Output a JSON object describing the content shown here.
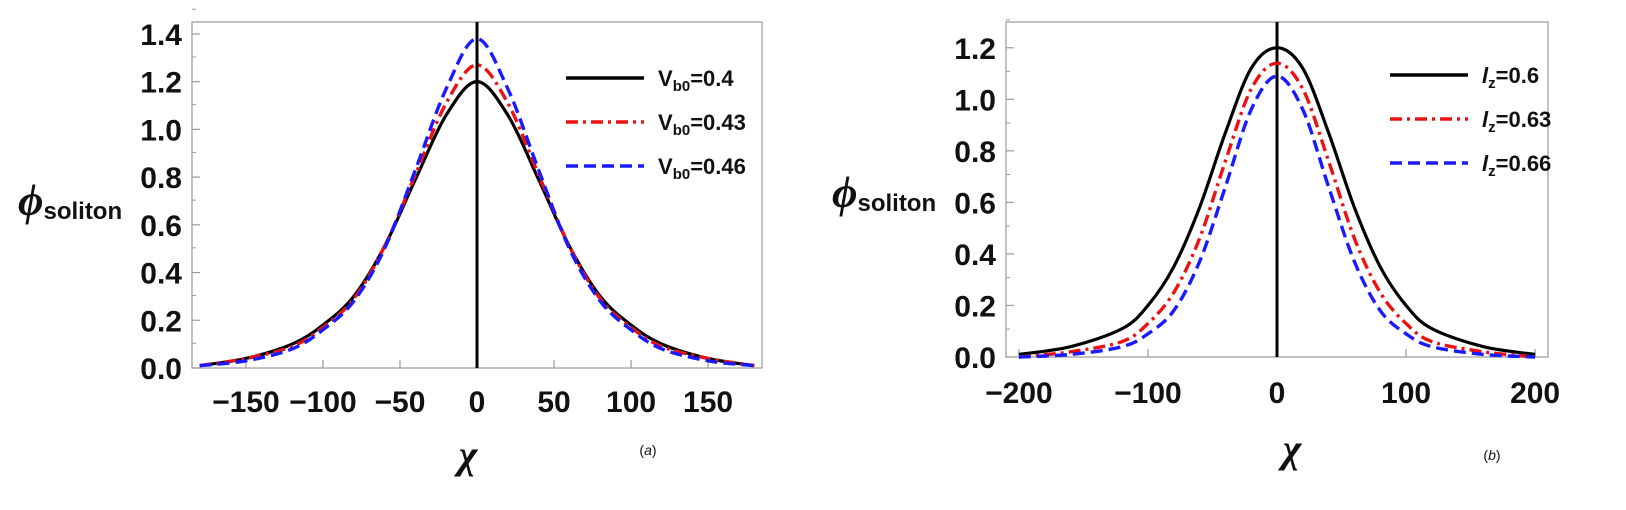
{
  "chart_data": [
    {
      "type": "line",
      "panel_label": "(a)",
      "panel_letter": "a",
      "xlabel": "χ",
      "ylabel": "ϕ",
      "ylabel_sub": "soliton",
      "xlim": [
        -185,
        185
      ],
      "ylim": [
        0,
        1.45
      ],
      "xticks": [
        -150,
        -100,
        -50,
        0,
        50,
        100,
        150
      ],
      "xtick_labels": [
        "−150",
        "−100",
        "−50",
        "0",
        "50",
        "100",
        "150"
      ],
      "yticks": [
        0,
        0.2,
        0.4,
        0.6,
        0.8,
        1.0,
        1.2,
        1.4
      ],
      "ytick_labels": [
        "0.0",
        "0.2",
        "0.4",
        "0.6",
        "0.8",
        "1.0",
        "1.2",
        "1.4"
      ],
      "legend_position": "top-right",
      "x": [
        -180,
        -150,
        -120,
        -100,
        -80,
        -60,
        -40,
        -20,
        0,
        20,
        40,
        60,
        80,
        100,
        120,
        150,
        180
      ],
      "series": [
        {
          "name": "Vb0=0.4",
          "label_main": "V",
          "label_sub": "b0",
          "label_value": "=0.4",
          "color": "#000000",
          "style": "solid",
          "values": [
            0.01,
            0.04,
            0.1,
            0.18,
            0.3,
            0.51,
            0.79,
            1.06,
            1.2,
            1.06,
            0.79,
            0.51,
            0.3,
            0.18,
            0.1,
            0.04,
            0.01
          ]
        },
        {
          "name": "Vb0=0.43",
          "label_main": "V",
          "label_sub": "b0",
          "label_value": "=0.43",
          "color": "#ee1111",
          "style": "dashdot",
          "values": [
            0.01,
            0.04,
            0.09,
            0.17,
            0.29,
            0.51,
            0.81,
            1.11,
            1.27,
            1.11,
            0.81,
            0.51,
            0.29,
            0.17,
            0.09,
            0.04,
            0.01
          ]
        },
        {
          "name": "Vb0=0.46",
          "label_main": "V",
          "label_sub": "b0",
          "label_value": "=0.46",
          "color": "#1a1aff",
          "style": "dashed",
          "values": [
            0.01,
            0.03,
            0.08,
            0.16,
            0.28,
            0.5,
            0.83,
            1.17,
            1.38,
            1.17,
            0.83,
            0.5,
            0.28,
            0.16,
            0.08,
            0.03,
            0.01
          ]
        }
      ]
    },
    {
      "type": "line",
      "panel_label": "(b)",
      "panel_letter": "b",
      "xlabel": "χ",
      "ylabel": "ϕ",
      "ylabel_sub": "soliton",
      "xlim": [
        -210,
        210
      ],
      "ylim": [
        0,
        1.3
      ],
      "xticks": [
        -200,
        -100,
        0,
        100,
        200
      ],
      "xtick_labels": [
        "−200",
        "−100",
        "0",
        "100",
        "200"
      ],
      "yticks": [
        0,
        0.2,
        0.4,
        0.6,
        0.8,
        1.0,
        1.2
      ],
      "ytick_labels": [
        "0.0",
        "0.2",
        "0.4",
        "0.6",
        "0.8",
        "1.0",
        "1.2"
      ],
      "legend_position": "top-right",
      "x": [
        -200,
        -160,
        -120,
        -100,
        -80,
        -60,
        -40,
        -20,
        0,
        20,
        40,
        60,
        80,
        100,
        120,
        160,
        200
      ],
      "series": [
        {
          "name": "lz=0.6",
          "label_main": "l",
          "label_sub": "z",
          "label_value": "=0.6",
          "color": "#000000",
          "style": "solid",
          "values": [
            0.01,
            0.04,
            0.11,
            0.2,
            0.35,
            0.58,
            0.87,
            1.12,
            1.2,
            1.12,
            0.87,
            0.58,
            0.35,
            0.2,
            0.11,
            0.04,
            0.01
          ]
        },
        {
          "name": "lz=0.63",
          "label_main": "l",
          "label_sub": "z",
          "label_value": "=0.63",
          "color": "#ee1111",
          "style": "dashdot",
          "values": [
            0.0,
            0.02,
            0.06,
            0.13,
            0.25,
            0.46,
            0.76,
            1.04,
            1.14,
            1.04,
            0.76,
            0.46,
            0.25,
            0.13,
            0.06,
            0.02,
            0.0
          ]
        },
        {
          "name": "lz=0.66",
          "label_main": "l",
          "label_sub": "z",
          "label_value": "=0.66",
          "color": "#1a1aff",
          "style": "dashed",
          "values": [
            0.0,
            0.01,
            0.04,
            0.09,
            0.18,
            0.37,
            0.66,
            0.96,
            1.09,
            0.96,
            0.66,
            0.37,
            0.18,
            0.09,
            0.04,
            0.01,
            0.0
          ]
        }
      ]
    }
  ]
}
